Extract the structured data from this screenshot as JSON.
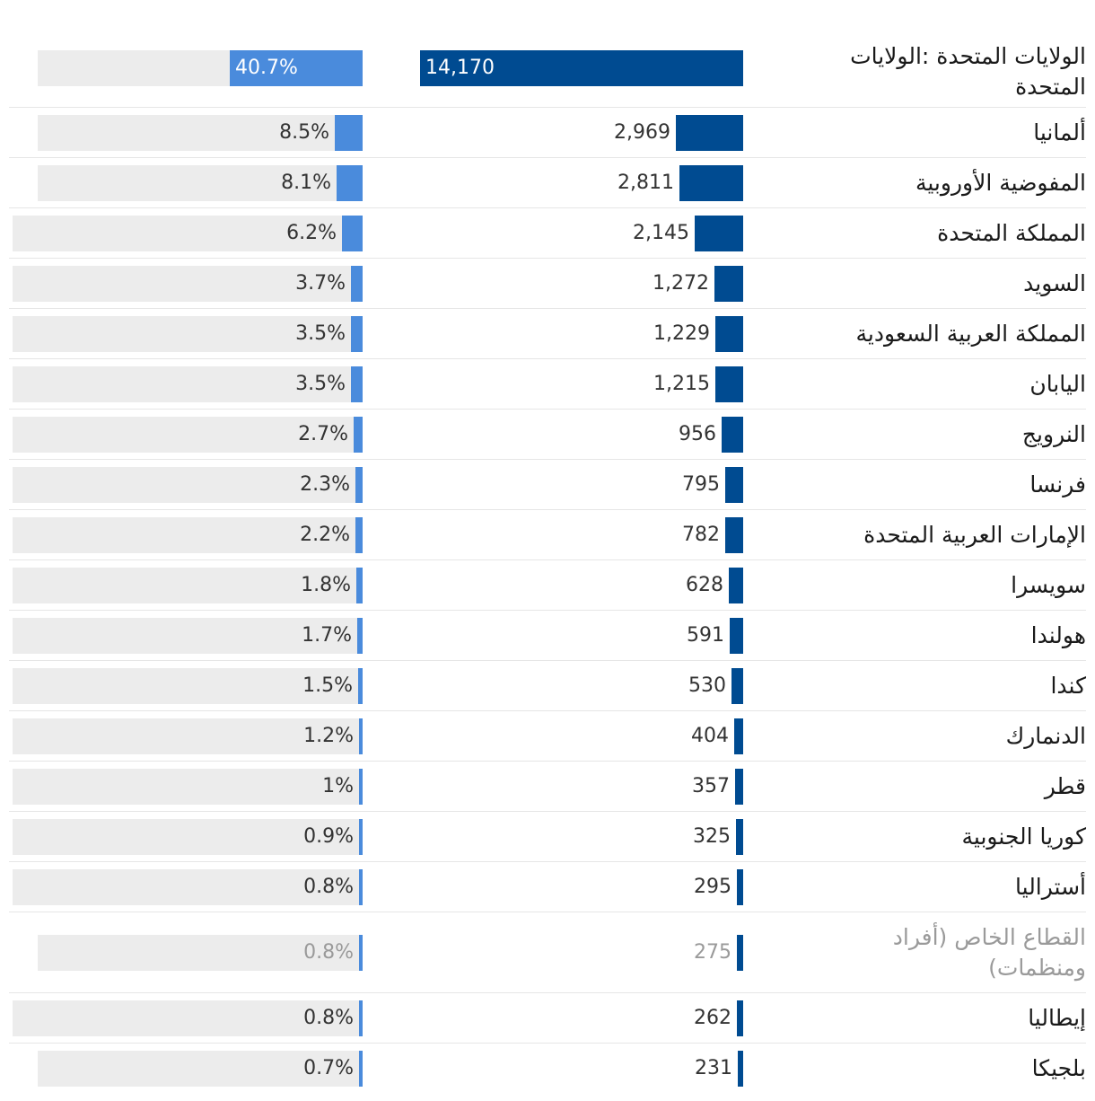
{
  "chart_data": {
    "type": "bar",
    "categories": [
      "الولايات المتحدة :الولايات المتحدة",
      "ألمانيا",
      "المفوضية الأوروبية",
      "المملكة المتحدة",
      "السويد",
      "المملكة العربية السعودية",
      "اليابان",
      "النرويج",
      "فرنسا",
      "الإمارات العربية المتحدة",
      "سويسرا",
      "هولندا",
      "كندا",
      "الدنمارك",
      "قطر",
      "كوريا الجنوبية",
      "أستراليا",
      "القطاع الخاص (أفراد ومنظمات)",
      "إيطاليا",
      "بلجيكا"
    ],
    "series": [
      {
        "name": "value",
        "values": [
          14170,
          2969,
          2811,
          2145,
          1272,
          1229,
          1215,
          956,
          795,
          782,
          628,
          591,
          530,
          404,
          357,
          325,
          295,
          275,
          262,
          231
        ],
        "labels": [
          "14,170",
          "2,969",
          "2,811",
          "2,145",
          "1,272",
          "1,229",
          "1,215",
          "956",
          "795",
          "782",
          "628",
          "591",
          "530",
          "404",
          "357",
          "325",
          "295",
          "275",
          "262",
          "231"
        ],
        "color": "#004b91"
      },
      {
        "name": "percent",
        "values": [
          40.7,
          8.5,
          8.1,
          6.2,
          3.7,
          3.5,
          3.5,
          2.7,
          2.3,
          2.2,
          1.8,
          1.7,
          1.5,
          1.2,
          1,
          0.9,
          0.8,
          0.8,
          0.8,
          0.7
        ],
        "labels": [
          "40.7%",
          "8.5%",
          "8.1%",
          "6.2%",
          "3.7%",
          "3.5%",
          "3.5%",
          "2.7%",
          "2.3%",
          "2.2%",
          "1.8%",
          "1.7%",
          "1.5%",
          "1.2%",
          "1%",
          "0.9%",
          "0.8%",
          "0.8%",
          "0.8%",
          "0.7%"
        ],
        "color": "#4a8bdc",
        "track_color": "#ececec",
        "max": 100
      }
    ],
    "highlighted_muted": [
      "القطاع الخاص (أفراد ومنظمات)"
    ],
    "title": "",
    "xlabel": "",
    "ylabel": ""
  }
}
